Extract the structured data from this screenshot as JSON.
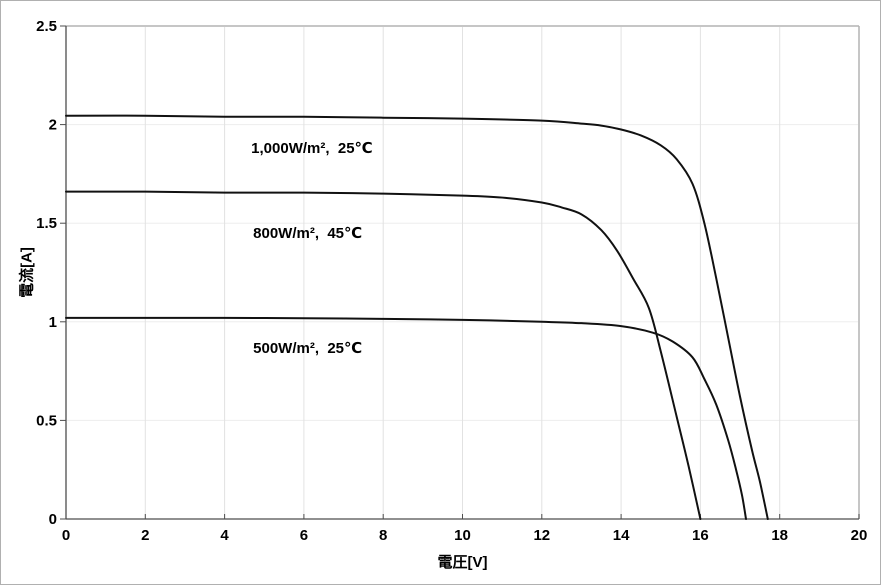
{
  "figure": {
    "background": "#ffffff",
    "outer_border_color": "#b0b0b0"
  },
  "chart_data": {
    "type": "line",
    "title": "",
    "xlabel": "電圧[V]",
    "ylabel": "電流[A]",
    "xlim": [
      0,
      20
    ],
    "ylim": [
      0,
      2.5
    ],
    "xticks": [
      0,
      2,
      4,
      6,
      8,
      10,
      12,
      14,
      16,
      18,
      20
    ],
    "yticks": [
      0,
      0.5,
      1,
      1.5,
      2,
      2.5
    ],
    "grid": true,
    "legend_position": "none-inline-annotations",
    "line_color": "#111111",
    "axis_color": "#4d4d4d",
    "plot_border_color": "#b3b3b3",
    "grid_color_vertical": "#e2e2e2",
    "grid_color_horizontal": "#ededed",
    "series": [
      {
        "name": "1000w-25c",
        "label": "1,000W/m²,  25℃",
        "isc_a": 2.04,
        "voc_v": 17.7,
        "annotation_pos": [
          4.67,
          1.876
        ],
        "points": [
          [
            0,
            2.045
          ],
          [
            2,
            2.045
          ],
          [
            4,
            2.04
          ],
          [
            6,
            2.04
          ],
          [
            8,
            2.035
          ],
          [
            10,
            2.03
          ],
          [
            12,
            2.02
          ],
          [
            13,
            2.005
          ],
          [
            13.5,
            1.995
          ],
          [
            14,
            1.975
          ],
          [
            14.5,
            1.945
          ],
          [
            15,
            1.895
          ],
          [
            15.4,
            1.825
          ],
          [
            15.8,
            1.7
          ],
          [
            16.1,
            1.5
          ],
          [
            16.4,
            1.22
          ],
          [
            16.7,
            0.92
          ],
          [
            17,
            0.62
          ],
          [
            17.3,
            0.35
          ],
          [
            17.5,
            0.19
          ],
          [
            17.7,
            0
          ]
        ]
      },
      {
        "name": "800w-45c",
        "label": "800W/m²,  45℃",
        "isc_a": 1.66,
        "voc_v": 16.0,
        "annotation_pos": [
          4.72,
          1.445
        ],
        "points": [
          [
            0,
            1.66
          ],
          [
            2,
            1.66
          ],
          [
            4,
            1.655
          ],
          [
            6,
            1.655
          ],
          [
            8,
            1.65
          ],
          [
            10,
            1.64
          ],
          [
            11,
            1.63
          ],
          [
            12,
            1.605
          ],
          [
            12.5,
            1.58
          ],
          [
            13,
            1.545
          ],
          [
            13.5,
            1.465
          ],
          [
            13.9,
            1.36
          ],
          [
            14.3,
            1.22
          ],
          [
            14.7,
            1.07
          ],
          [
            15,
            0.85
          ],
          [
            15.4,
            0.52
          ],
          [
            15.7,
            0.27
          ],
          [
            16,
            0
          ]
        ]
      },
      {
        "name": "500w-25c",
        "label": "500W/m²,  25℃",
        "isc_a": 1.02,
        "voc_v": 17.15,
        "annotation_pos": [
          4.72,
          0.862
        ],
        "points": [
          [
            0,
            1.02
          ],
          [
            2,
            1.02
          ],
          [
            4,
            1.02
          ],
          [
            6,
            1.018
          ],
          [
            8,
            1.015
          ],
          [
            10,
            1.01
          ],
          [
            12,
            1.0
          ],
          [
            13,
            0.993
          ],
          [
            14,
            0.978
          ],
          [
            14.8,
            0.945
          ],
          [
            15.3,
            0.9
          ],
          [
            15.8,
            0.82
          ],
          [
            16.1,
            0.71
          ],
          [
            16.4,
            0.58
          ],
          [
            16.7,
            0.4
          ],
          [
            16.9,
            0.25
          ],
          [
            17.05,
            0.12
          ],
          [
            17.15,
            0
          ]
        ]
      }
    ]
  }
}
